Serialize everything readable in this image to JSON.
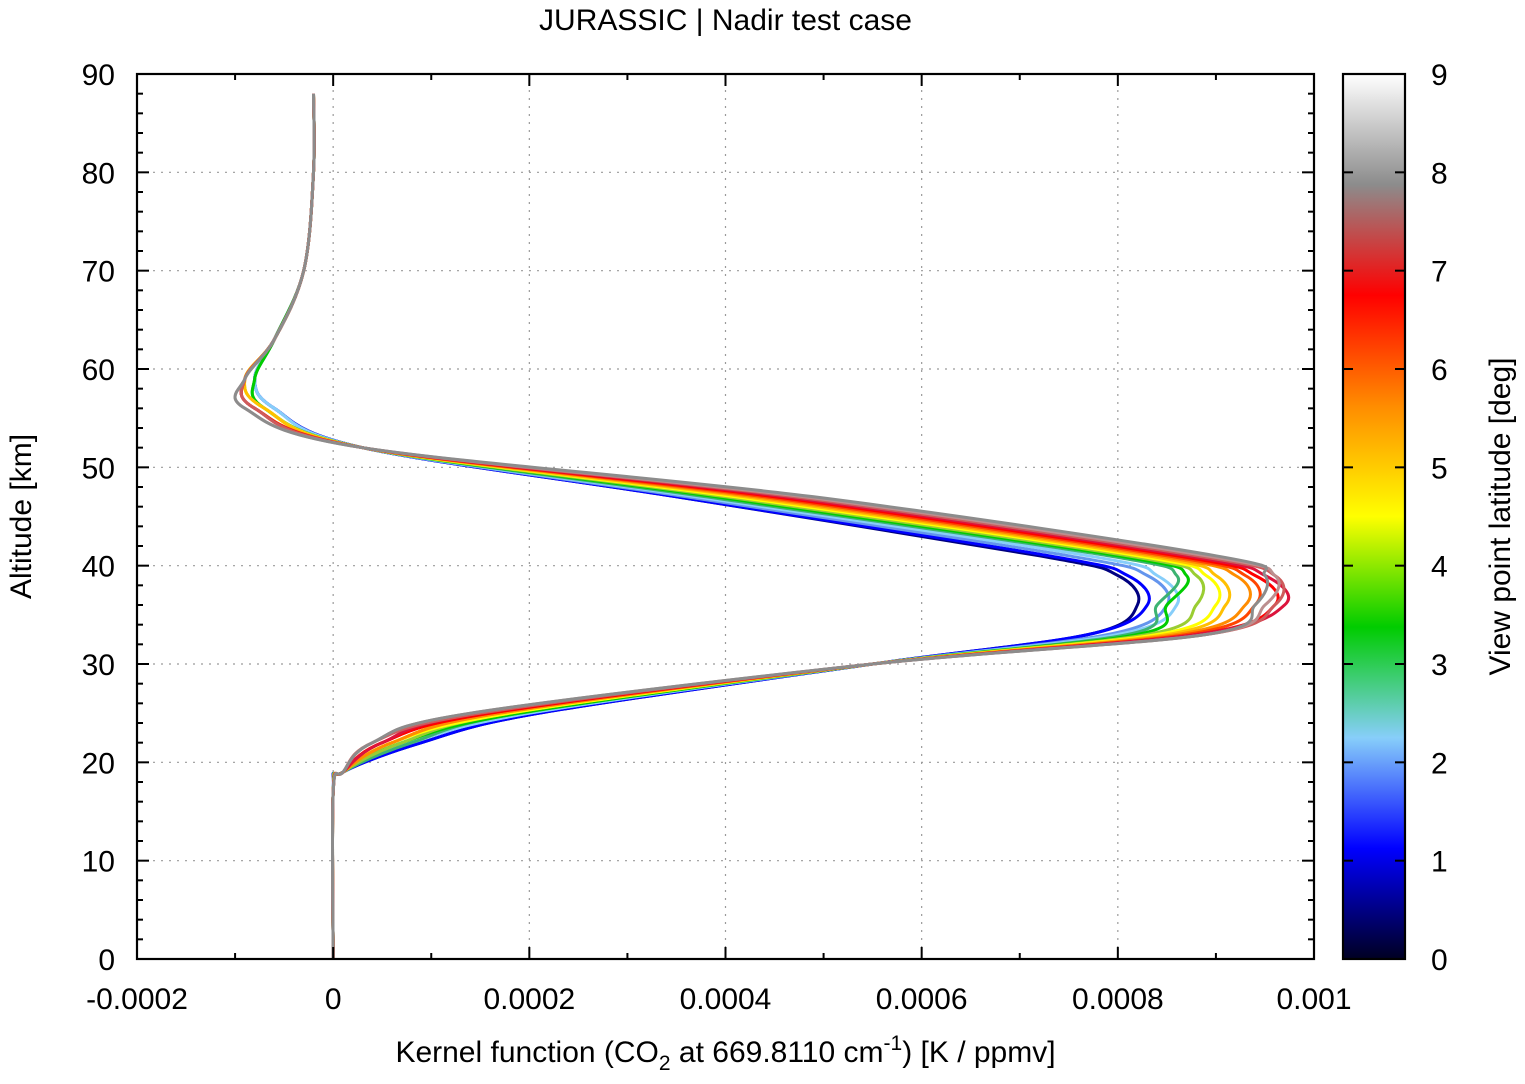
{
  "chart_data": {
    "type": "line",
    "title": "JURASSIC | Nadir test case",
    "xlabel": {
      "prefix": "Kernel function (CO",
      "sub": "2",
      "middle": " at 669.8110 cm",
      "sup": "-1",
      "suffix": ") [K / ppmv]"
    },
    "ylabel": "Altitude [km]",
    "xlim": [
      -0.0002,
      0.001
    ],
    "ylim": [
      0,
      90
    ],
    "x_ticks": [
      "-0.0002",
      "0",
      "0.0002",
      "0.0004",
      "0.0006",
      "0.0008",
      "0.001"
    ],
    "x_tick_values": [
      -0.0002,
      0,
      0.0002,
      0.0004,
      0.0006,
      0.0008,
      0.001
    ],
    "y_ticks": [
      "0",
      "10",
      "20",
      "30",
      "40",
      "50",
      "60",
      "70",
      "80",
      "90"
    ],
    "y_tick_values": [
      0,
      10,
      20,
      30,
      40,
      50,
      60,
      70,
      80,
      90
    ],
    "grid": true,
    "colorbar": {
      "label": "View point latitude [deg]",
      "range": [
        0,
        9
      ],
      "ticks": [
        "0",
        "1",
        "2",
        "3",
        "4",
        "5",
        "6",
        "7",
        "8",
        "9"
      ],
      "tick_values": [
        0,
        1,
        2,
        3,
        4,
        5,
        6,
        7,
        8,
        9
      ],
      "colormap": [
        "#000022",
        "#0000ff",
        "#87cefa",
        "#00cc00",
        "#ffff00",
        "#ff8c00",
        "#ff0000",
        "#8c8c8c",
        "#ffffff"
      ]
    },
    "series": [
      {
        "color": "#000080",
        "x": [
          0,
          0,
          1e-05,
          9e-05,
          0.00021,
          0.00055,
          0.00077,
          0.00082,
          0.0008,
          0.00072,
          0.00035,
          3e-05,
          -6e-05,
          -8e-05,
          -6e-05,
          -3e-05,
          -2e-05,
          -2e-05
        ],
        "y": [
          0,
          17,
          19,
          22,
          25,
          30,
          33,
          36,
          39,
          41,
          47,
          52,
          56,
          59,
          63,
          70,
          80,
          88
        ]
      },
      {
        "color": "#0000ff",
        "x": [
          0,
          0,
          1e-05,
          9e-05,
          0.00021,
          0.00055,
          0.00077,
          0.00083,
          0.00081,
          0.00073,
          0.00035,
          3e-05,
          -6e-05,
          -8e-05,
          -6e-05,
          -3e-05,
          -2e-05,
          -2e-05
        ],
        "y": [
          0,
          17,
          19,
          22,
          25,
          30,
          33,
          36,
          39,
          41,
          47,
          52,
          56,
          59,
          63,
          70,
          80,
          88
        ]
      },
      {
        "color": "#6495ed",
        "x": [
          0,
          0,
          1e-05,
          8e-05,
          0.0002,
          0.00055,
          0.00079,
          0.00085,
          0.00083,
          0.00075,
          0.00036,
          3e-05,
          -6e-05,
          -8e-05,
          -6e-05,
          -3e-05,
          -2e-05,
          -2e-05
        ],
        "y": [
          0,
          17,
          19,
          22,
          25,
          30,
          33,
          36,
          39,
          41,
          47,
          52,
          56,
          59,
          63,
          70,
          80,
          88
        ]
      },
      {
        "color": "#87cefa",
        "x": [
          0,
          0,
          1e-05,
          8e-05,
          0.0002,
          0.00055,
          0.0008,
          0.00086,
          0.00084,
          0.00077,
          0.00037,
          3e-05,
          -6e-05,
          -8e-05,
          -6e-05,
          -3e-05,
          -2e-05,
          -2e-05
        ],
        "y": [
          0,
          17,
          19,
          22,
          25,
          30,
          33,
          36,
          39,
          41,
          47,
          52,
          56,
          59,
          63,
          70,
          80,
          88
        ]
      },
      {
        "color": "#3cb371",
        "x": [
          0,
          0,
          1e-05,
          8e-05,
          0.00019,
          0.00055,
          0.00081,
          0.00084,
          0.00086,
          0.00079,
          0.00038,
          3e-05,
          -7e-05,
          -8e-05,
          -6e-05,
          -3e-05,
          -2e-05,
          -2e-05
        ],
        "y": [
          0,
          17,
          19,
          22,
          25,
          30,
          33,
          36,
          39,
          41,
          47,
          52,
          56,
          59,
          63,
          70,
          80,
          88
        ]
      },
      {
        "color": "#00cc00",
        "x": [
          0,
          0,
          1e-05,
          7e-05,
          0.00019,
          0.00055,
          0.00082,
          0.00085,
          0.00087,
          0.0008,
          0.00039,
          3e-05,
          -7e-05,
          -8e-05,
          -6e-05,
          -3e-05,
          -2e-05,
          -2e-05
        ],
        "y": [
          0,
          17,
          19,
          22,
          25,
          30,
          33,
          36,
          39,
          41,
          47,
          52,
          56,
          59,
          63,
          70,
          80,
          88
        ]
      },
      {
        "color": "#9acd32",
        "x": [
          0,
          0,
          1e-05,
          7e-05,
          0.00018,
          0.00055,
          0.00083,
          0.00088,
          0.00088,
          0.00081,
          0.0004,
          3e-05,
          -7e-05,
          -9e-05,
          -6e-05,
          -3e-05,
          -2e-05,
          -2e-05
        ],
        "y": [
          0,
          17,
          19,
          22,
          25,
          30,
          33,
          36,
          39,
          41,
          47,
          52,
          56,
          59,
          63,
          70,
          80,
          88
        ]
      },
      {
        "color": "#ffff00",
        "x": [
          0,
          0,
          1e-05,
          6e-05,
          0.00018,
          0.00055,
          0.00084,
          0.0009,
          0.00089,
          0.00082,
          0.00041,
          3e-05,
          -7e-05,
          -9e-05,
          -6e-05,
          -3e-05,
          -2e-05,
          -2e-05
        ],
        "y": [
          0,
          17,
          19,
          22,
          25,
          30,
          33,
          36,
          39,
          41,
          47,
          52,
          56,
          59,
          63,
          70,
          80,
          88
        ]
      },
      {
        "color": "#ffc000",
        "x": [
          0,
          0,
          1e-05,
          6e-05,
          0.00017,
          0.00055,
          0.00085,
          0.00091,
          0.0009,
          0.00083,
          0.00042,
          3e-05,
          -7e-05,
          -9e-05,
          -6e-05,
          -3e-05,
          -2e-05,
          -2e-05
        ],
        "y": [
          0,
          17,
          19,
          22,
          25,
          30,
          33,
          36,
          39,
          41,
          47,
          52,
          56,
          59,
          63,
          70,
          80,
          88
        ]
      },
      {
        "color": "#ff8c00",
        "x": [
          0,
          0,
          1e-05,
          6e-05,
          0.00017,
          0.00055,
          0.00086,
          0.00093,
          0.00092,
          0.00084,
          0.00043,
          3e-05,
          -8e-05,
          -9e-05,
          -6e-05,
          -3e-05,
          -2e-05,
          -2e-05
        ],
        "y": [
          0,
          17,
          19,
          22,
          25,
          30,
          33,
          36,
          39,
          41,
          47,
          52,
          56,
          59,
          63,
          70,
          80,
          88
        ]
      },
      {
        "color": "#ff4500",
        "x": [
          0,
          0,
          1e-05,
          5e-05,
          0.00016,
          0.00055,
          0.00087,
          0.00094,
          0.00093,
          0.00085,
          0.00044,
          3e-05,
          -8e-05,
          -9e-05,
          -6e-05,
          -3e-05,
          -2e-05,
          -2e-05
        ],
        "y": [
          0,
          17,
          19,
          22,
          25,
          30,
          33,
          36,
          39,
          41,
          47,
          52,
          56,
          59,
          63,
          70,
          80,
          88
        ]
      },
      {
        "color": "#ff0000",
        "x": [
          0,
          0,
          1e-05,
          5e-05,
          0.00016,
          0.00055,
          0.00088,
          0.00096,
          0.00094,
          0.00086,
          0.00045,
          3e-05,
          -8e-05,
          -9e-05,
          -6e-05,
          -3e-05,
          -2e-05,
          -2e-05
        ],
        "y": [
          0,
          17,
          19,
          22,
          25,
          30,
          33,
          36,
          39,
          41,
          47,
          52,
          56,
          59,
          63,
          70,
          80,
          88
        ]
      },
      {
        "color": "#dc143c",
        "x": [
          0,
          0,
          1e-05,
          5e-05,
          0.00015,
          0.00055,
          0.00088,
          0.00097,
          0.00095,
          0.00087,
          0.00046,
          3e-05,
          -8e-05,
          -9e-05,
          -6e-05,
          -3e-05,
          -2e-05,
          -2e-05
        ],
        "y": [
          0,
          17,
          19,
          22,
          25,
          30,
          33,
          36,
          39,
          41,
          47,
          52,
          56,
          59,
          63,
          70,
          80,
          88
        ]
      },
      {
        "color": "#cd5c5c",
        "x": [
          0,
          0,
          1e-05,
          4e-05,
          0.00015,
          0.00055,
          0.00089,
          0.00096,
          0.00096,
          0.00088,
          0.00047,
          3e-05,
          -8e-05,
          -9e-05,
          -6e-05,
          -3e-05,
          -2e-05,
          -2e-05
        ],
        "y": [
          0,
          17,
          19,
          22,
          25,
          30,
          33,
          36,
          39,
          41,
          47,
          52,
          56,
          59,
          63,
          70,
          80,
          88
        ]
      },
      {
        "color": "#bc8f8f",
        "x": [
          0,
          0,
          1e-05,
          4e-05,
          0.00014,
          0.00055,
          0.00089,
          0.00095,
          0.00096,
          0.00089,
          0.00048,
          3e-05,
          -9e-05,
          -9e-05,
          -6e-05,
          -3e-05,
          -2e-05,
          -2e-05
        ],
        "y": [
          0,
          17,
          19,
          22,
          25,
          30,
          33,
          36,
          39,
          41,
          47,
          52,
          56,
          59,
          63,
          70,
          80,
          88
        ]
      },
      {
        "color": "#8c8c8c",
        "x": [
          0,
          0,
          1e-05,
          4e-05,
          0.00014,
          0.00055,
          0.00089,
          0.00094,
          0.00095,
          0.0009,
          0.00049,
          3e-05,
          -9e-05,
          -9e-05,
          -6e-05,
          -3e-05,
          -2e-05,
          -2e-05
        ],
        "y": [
          0,
          17,
          19,
          22,
          25,
          30,
          33,
          36,
          39,
          41,
          47,
          52,
          56,
          59,
          63,
          70,
          80,
          88
        ]
      }
    ]
  }
}
